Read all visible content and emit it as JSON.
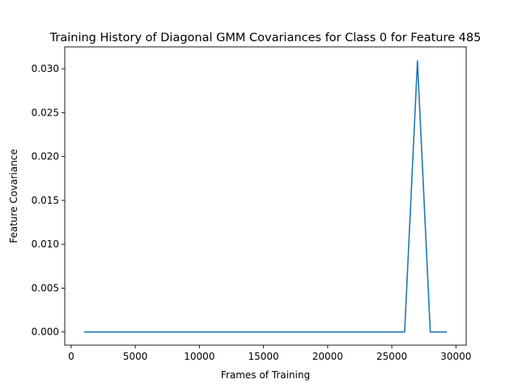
{
  "chart_data": {
    "type": "line",
    "title": "Training History of Diagonal GMM Covariances for Class 0 for Feature 485",
    "xlabel": "Frames of Training",
    "ylabel": "Feature Covariance",
    "xlim": [
      -500,
      30800
    ],
    "ylim": [
      -0.0015,
      0.0325
    ],
    "xticks": [
      0,
      5000,
      10000,
      15000,
      20000,
      25000,
      30000
    ],
    "xtick_labels": [
      "0",
      "5000",
      "10000",
      "15000",
      "20000",
      "25000",
      "30000"
    ],
    "yticks": [
      0.0,
      0.005,
      0.01,
      0.015,
      0.02,
      0.025,
      0.03
    ],
    "ytick_labels": [
      "0.000",
      "0.005",
      "0.010",
      "0.015",
      "0.020",
      "0.025",
      "0.030"
    ],
    "grid": false,
    "series": [
      {
        "color": "#1f77b4",
        "x": [
          1000,
          26000,
          27000,
          28000,
          29300
        ],
        "y": [
          0.0,
          0.0,
          0.0309,
          0.0,
          0.0
        ]
      }
    ]
  }
}
